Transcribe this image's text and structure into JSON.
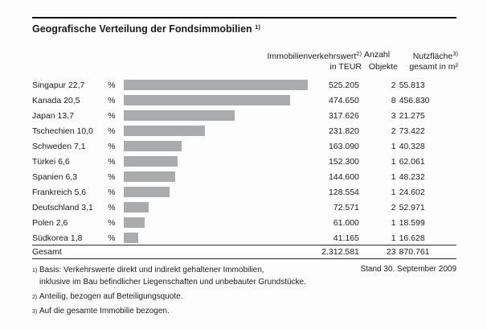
{
  "page": {
    "title": "Geografische Verteilung der Fondsimmobilien",
    "title_footnote_ref": "1)"
  },
  "table": {
    "header": {
      "value_label": "Immobilienverkehrswert",
      "value_footnote_ref": "2)",
      "value_unit": "in TEUR",
      "count_label": "Anzahl",
      "count_unit": "Objekte",
      "area_label": "Nutzfläche",
      "area_footnote_ref": "3)",
      "area_unit": "gesamt in m²"
    },
    "percent_sign": "%",
    "rows": [
      {
        "label": "Singapur 22,7",
        "pct": 22.7,
        "teur": "525.205",
        "objekte": "2",
        "flaeche": "55.813"
      },
      {
        "label": "Kanada 20,5",
        "pct": 20.5,
        "teur": "474.650",
        "objekte": "8",
        "flaeche": "456.830"
      },
      {
        "label": "Japan 13,7",
        "pct": 13.7,
        "teur": "317.626",
        "objekte": "3",
        "flaeche": "21.275"
      },
      {
        "label": "Tschechien 10,0",
        "pct": 10.0,
        "teur": "231.820",
        "objekte": "2",
        "flaeche": "73.422"
      },
      {
        "label": "Schweden 7,1",
        "pct": 7.1,
        "teur": "163.090",
        "objekte": "1",
        "flaeche": "40.328"
      },
      {
        "label": "Türkei 6,6",
        "pct": 6.6,
        "teur": "152.300",
        "objekte": "1",
        "flaeche": "62.061"
      },
      {
        "label": "Spanien 6,3",
        "pct": 6.3,
        "teur": "144.600",
        "objekte": "1",
        "flaeche": "48.232"
      },
      {
        "label": "Frankreich 5,6",
        "pct": 5.6,
        "teur": "128.554",
        "objekte": "1",
        "flaeche": "24.602"
      },
      {
        "label": "Deutschland 3,1",
        "pct": 3.1,
        "teur": "72.571",
        "objekte": "2",
        "flaeche": "52.971"
      },
      {
        "label": "Polen 2,6",
        "pct": 2.6,
        "teur": "61.000",
        "objekte": "1",
        "flaeche": "18.599"
      },
      {
        "label": "Südkorea 1,8",
        "pct": 1.8,
        "teur": "41.165",
        "objekte": "1",
        "flaeche": "16.628"
      }
    ],
    "total": {
      "label": "Gesamt",
      "teur": "2.312.581",
      "objekte": "23",
      "flaeche": "870.761"
    }
  },
  "footnotes": [
    {
      "ref": "1)",
      "lines": [
        "Basis: Verkehrswerte direkt und indirekt gehaltener Immobilien,",
        "inklusive im Bau befindlicher Liegenschaften und unbebauter Grundstücke."
      ]
    },
    {
      "ref": "2)",
      "lines": [
        "Anteilig, bezogen auf Beteiligungsquote."
      ]
    },
    {
      "ref": "3)",
      "lines": [
        "Auf die gesamte Immobilie bezogen."
      ]
    }
  ],
  "stand": "Stand 30. September 2009",
  "colors": {
    "bar": "#a9abac",
    "rule": "#151515"
  },
  "chart_data": {
    "type": "bar",
    "orientation": "horizontal",
    "title": "Geografische Verteilung der Fondsimmobilien",
    "categories": [
      "Singapur",
      "Kanada",
      "Japan",
      "Tschechien",
      "Schweden",
      "Türkei",
      "Spanien",
      "Frankreich",
      "Deutschland",
      "Polen",
      "Südkorea"
    ],
    "series": [
      {
        "name": "Anteil in %",
        "values": [
          22.7,
          20.5,
          13.7,
          10.0,
          7.1,
          6.6,
          6.3,
          5.6,
          3.1,
          2.6,
          1.8
        ]
      },
      {
        "name": "Immobilienverkehrswert in TEUR",
        "values": [
          525205,
          474650,
          317626,
          231820,
          163090,
          152300,
          144600,
          128554,
          72571,
          61000,
          41165
        ]
      },
      {
        "name": "Anzahl Objekte",
        "values": [
          2,
          8,
          3,
          2,
          1,
          1,
          1,
          1,
          2,
          1,
          1
        ]
      },
      {
        "name": "Nutzfläche gesamt in m²",
        "values": [
          55813,
          456830,
          21275,
          73422,
          40328,
          62061,
          48232,
          24602,
          52971,
          18599,
          16628
        ]
      }
    ],
    "totals": {
      "immobilienverkehrswert_teur": 2312581,
      "anzahl_objekte": 23,
      "nutzflaeche_m2": 870761
    },
    "unit": "%",
    "bar_color": "#a9abac",
    "xlim": [
      0,
      23.5
    ],
    "grid": false,
    "legend": false,
    "bars_shown_for_series": "Anteil in %"
  }
}
